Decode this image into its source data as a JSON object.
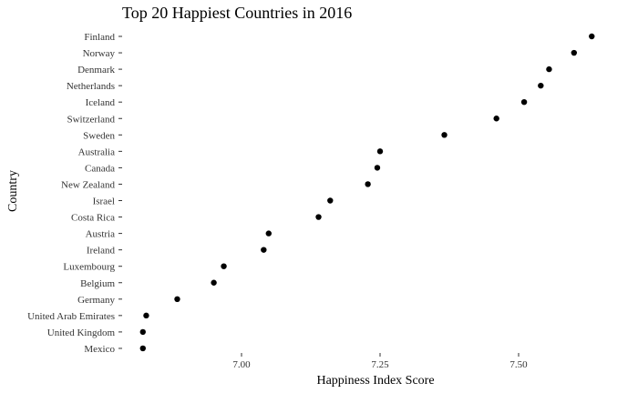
{
  "chart_data": {
    "type": "scatter",
    "title": "Top 20 Happiest Countries in 2016",
    "xlabel": "Happiness Index Score",
    "ylabel": "Country",
    "xlim": [
      6.82,
      7.66
    ],
    "xticks": [
      7.0,
      7.25,
      7.5
    ],
    "xtick_labels": [
      "7.00",
      "7.25",
      "7.50"
    ],
    "grid": false,
    "categories": [
      "Finland",
      "Norway",
      "Denmark",
      "Netherlands",
      "Iceland",
      "Switzerland",
      "Sweden",
      "Australia",
      "Canada",
      "New Zealand",
      "Israel",
      "Costa Rica",
      "Austria",
      "Ireland",
      "Luxembourg",
      "Belgium",
      "Germany",
      "United Arab Emirates",
      "United Kingdom",
      "Mexico"
    ],
    "values": [
      7.632,
      7.6,
      7.555,
      7.54,
      7.51,
      7.46,
      7.366,
      7.25,
      7.245,
      7.228,
      7.16,
      7.139,
      7.049,
      7.04,
      6.968,
      6.95,
      6.884,
      6.828,
      6.822,
      6.822
    ]
  }
}
